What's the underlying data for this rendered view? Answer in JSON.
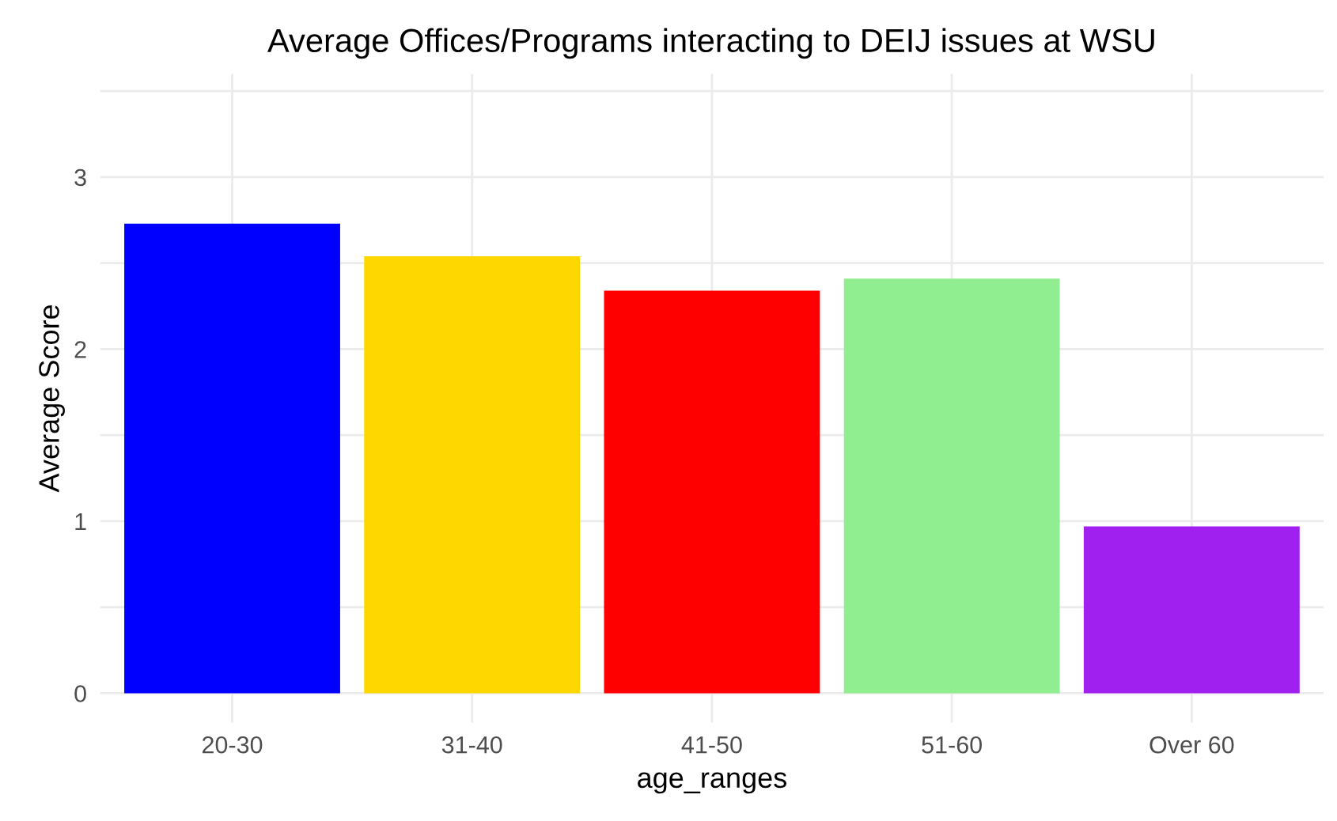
{
  "chart_data": {
    "type": "bar",
    "title": "Average Offices/Programs interacting to DEIJ issues at WSU",
    "xlabel": "age_ranges",
    "ylabel": "Average Score",
    "categories": [
      "20-30",
      "31-40",
      "41-50",
      "51-60",
      "Over 60"
    ],
    "values": [
      2.73,
      2.54,
      2.34,
      2.41,
      0.97
    ],
    "colors": [
      "#0000ff",
      "#ffd700",
      "#ff0000",
      "#90ee90",
      "#a020f0"
    ],
    "ylim": [
      -0.17,
      3.6
    ],
    "yticks": [
      0,
      {
        "value": 0.5,
        "label": null
      },
      1,
      {
        "value": 1.5,
        "label": null
      },
      2,
      {
        "value": 2.5,
        "label": null
      },
      3,
      {
        "value": 3.5,
        "label": null
      }
    ],
    "grid": true
  }
}
